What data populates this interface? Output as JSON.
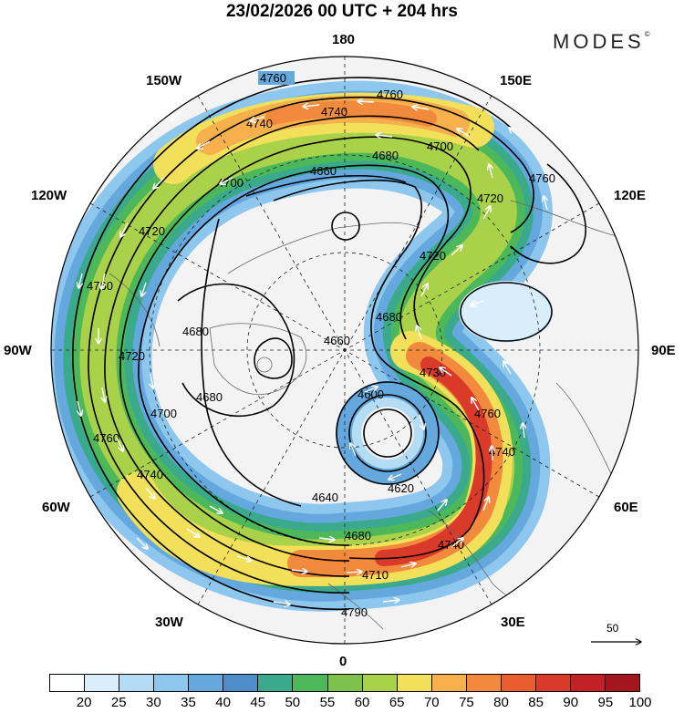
{
  "title": "23/02/2026  00 UTC  + 204 hrs",
  "brand": "MODES",
  "brand_mark": "©",
  "longitude_labels": {
    "n180": "180",
    "w150": "150W",
    "e150": "150E",
    "w120": "120W",
    "e120": "120E",
    "w90": "90W",
    "e90": "90E",
    "w60": "60W",
    "e60": "60E",
    "w30": "30W",
    "e30": "30E",
    "z0": "0"
  },
  "contour_labels": [
    "4760",
    "4760",
    "4740",
    "4740",
    "4680",
    "4700",
    "4660",
    "4700",
    "4720",
    "4720",
    "4760",
    "4720",
    "4680",
    "4660",
    "4680",
    "4760",
    "4720",
    "4700",
    "4680",
    "4760",
    "4730",
    "4600",
    "4640",
    "4620",
    "4680",
    "4740",
    "4740",
    "4710",
    "4790",
    "4760",
    "4740"
  ],
  "reference_vector_label": "50",
  "colorbar": {
    "colors": [
      "#ffffff",
      "#d8eefb",
      "#b4ddf5",
      "#8ec7ee",
      "#64a8dd",
      "#4d8ec8",
      "#3aa98c",
      "#4cb85a",
      "#7cc24d",
      "#a9d14a",
      "#f2e05a",
      "#f8b04d",
      "#f28a3d",
      "#ea5d2f",
      "#d93a2a",
      "#c42126",
      "#a3161d"
    ],
    "tick_labels": [
      "20",
      "25",
      "30",
      "35",
      "40",
      "45",
      "50",
      "55",
      "60",
      "65",
      "70",
      "75",
      "80",
      "85",
      "90",
      "95",
      "100"
    ]
  }
}
